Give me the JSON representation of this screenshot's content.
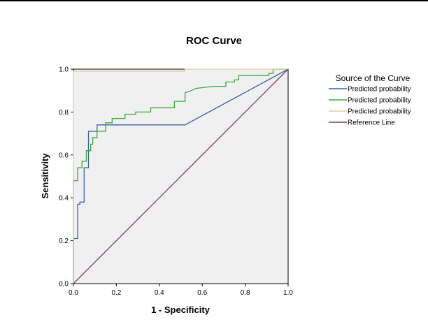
{
  "chart_data": {
    "type": "line",
    "title": "ROC Curve",
    "xlabel": "1 - Specificity",
    "ylabel": "Sensitivity",
    "xlim": [
      0,
      1
    ],
    "ylim": [
      0,
      1
    ],
    "xticks": [
      "0.0",
      "0.2",
      "0.4",
      "0.6",
      "0.8",
      "1.0"
    ],
    "yticks": [
      "0.0",
      "0.2",
      "0.4",
      "0.6",
      "0.8",
      "1.0"
    ],
    "grid": false,
    "plot_background": "#f0f0f0",
    "legend": {
      "title": "Source of the Curve",
      "position": "right"
    },
    "series": [
      {
        "name": "Predicted probability",
        "color": "#3a5fa8",
        "points": [
          [
            0,
            0
          ],
          [
            0,
            0.21
          ],
          [
            0.02,
            0.21
          ],
          [
            0.02,
            0.37
          ],
          [
            0.03,
            0.37
          ],
          [
            0.03,
            0.38
          ],
          [
            0.05,
            0.38
          ],
          [
            0.05,
            0.54
          ],
          [
            0.07,
            0.54
          ],
          [
            0.07,
            0.71
          ],
          [
            0.11,
            0.71
          ],
          [
            0.11,
            0.74
          ],
          [
            0.52,
            0.74
          ],
          [
            1,
            1
          ]
        ]
      },
      {
        "name": "Predicted probability",
        "color": "#3aaa35",
        "points": [
          [
            0,
            0
          ],
          [
            0,
            0.48
          ],
          [
            0.02,
            0.48
          ],
          [
            0.02,
            0.54
          ],
          [
            0.04,
            0.54
          ],
          [
            0.04,
            0.57
          ],
          [
            0.06,
            0.57
          ],
          [
            0.06,
            0.62
          ],
          [
            0.08,
            0.62
          ],
          [
            0.08,
            0.65
          ],
          [
            0.09,
            0.65
          ],
          [
            0.09,
            0.68
          ],
          [
            0.11,
            0.68
          ],
          [
            0.11,
            0.71
          ],
          [
            0.15,
            0.71
          ],
          [
            0.15,
            0.75
          ],
          [
            0.18,
            0.75
          ],
          [
            0.18,
            0.77
          ],
          [
            0.24,
            0.77
          ],
          [
            0.24,
            0.79
          ],
          [
            0.29,
            0.79
          ],
          [
            0.29,
            0.8
          ],
          [
            0.36,
            0.8
          ],
          [
            0.36,
            0.82
          ],
          [
            0.47,
            0.82
          ],
          [
            0.47,
            0.85
          ],
          [
            0.52,
            0.85
          ],
          [
            0.52,
            0.89
          ],
          [
            0.55,
            0.9
          ],
          [
            0.57,
            0.91
          ],
          [
            0.65,
            0.92
          ],
          [
            0.71,
            0.92
          ],
          [
            0.71,
            0.94
          ],
          [
            0.75,
            0.94
          ],
          [
            0.75,
            0.95
          ],
          [
            0.77,
            0.95
          ],
          [
            0.77,
            0.97
          ],
          [
            0.91,
            0.97
          ],
          [
            0.91,
            0.98
          ],
          [
            0.93,
            0.98
          ],
          [
            0.93,
            1.0
          ],
          [
            1,
            1
          ]
        ]
      },
      {
        "name": "Predicted probability",
        "color": "#d8d0a0",
        "points": [
          [
            0,
            0
          ],
          [
            0,
            0.99
          ],
          [
            0.52,
            0.99
          ],
          [
            0.52,
            1.0
          ],
          [
            1,
            1
          ]
        ]
      },
      {
        "name": "Reference Line",
        "color": "#7a3a7a",
        "points": [
          [
            0,
            0
          ],
          [
            1,
            1
          ]
        ]
      }
    ]
  }
}
